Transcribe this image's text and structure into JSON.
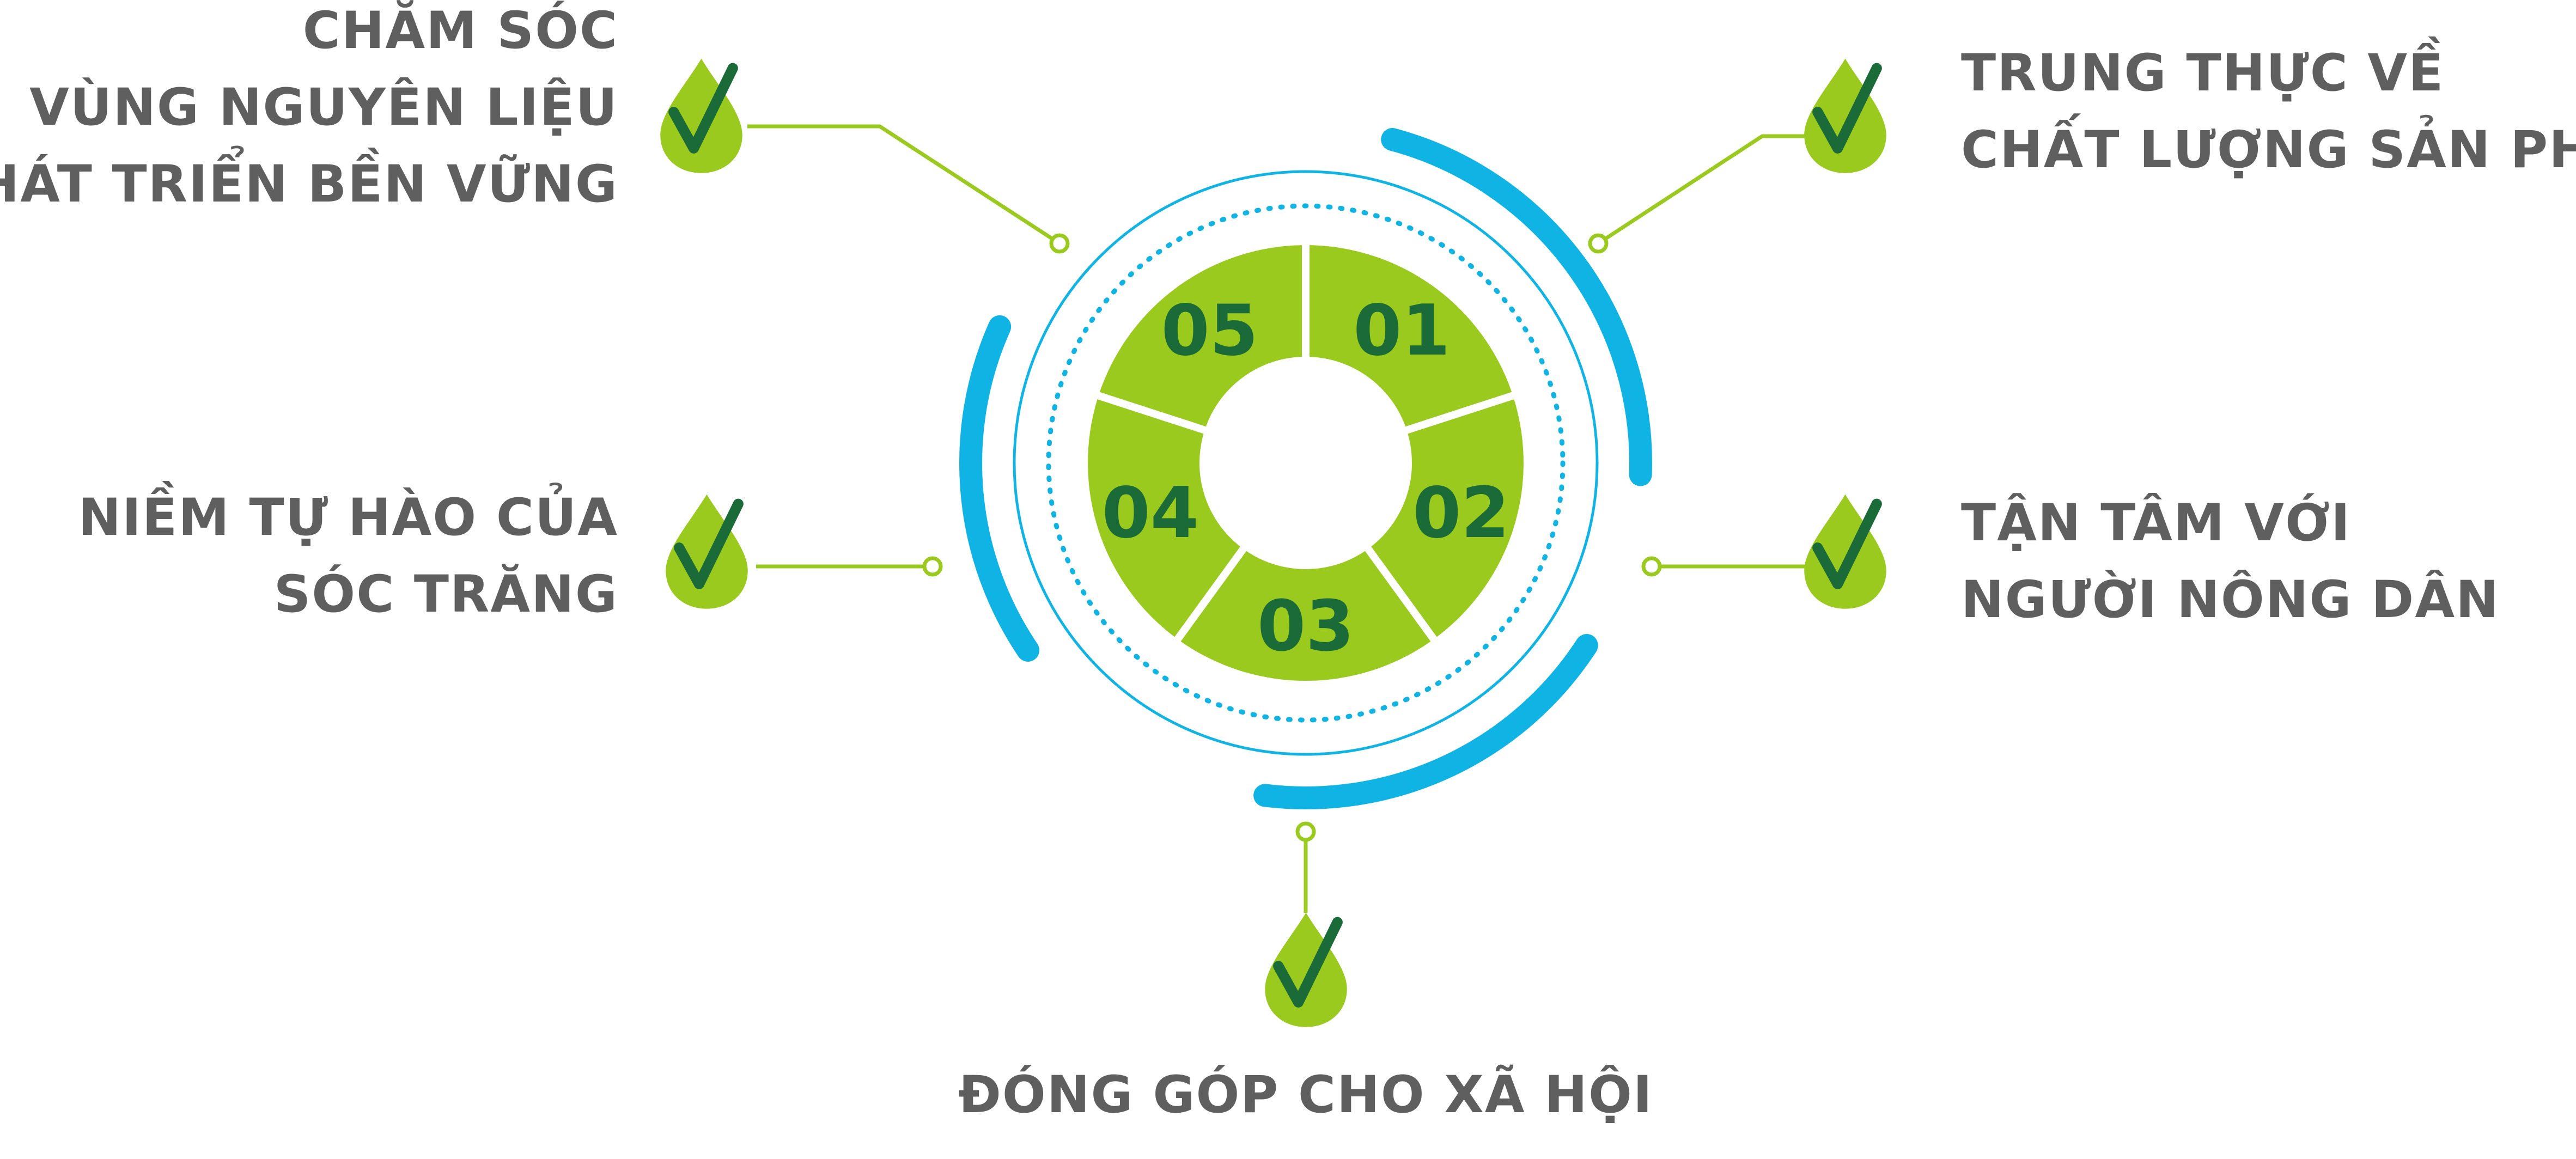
{
  "colors": {
    "green": "#9ACA1E",
    "dark_green": "#1A6B38",
    "blue": "#10B4E4",
    "text_gray": "#5F5F5F",
    "background": "#FFFFFF"
  },
  "segments": [
    "01",
    "02",
    "03",
    "04",
    "05"
  ],
  "items": {
    "top_left": {
      "lines": [
        "CHĂM SÓC",
        "VÙNG NGUYÊN LIỆU",
        "PHÁT TRIỂN BỀN VỮNG"
      ],
      "icon": "check-drop-icon"
    },
    "top_right": {
      "lines": [
        "TRUNG THỰC VỀ",
        "CHẤT LƯỢNG SẢN PHẨM"
      ],
      "icon": "check-drop-icon"
    },
    "mid_left": {
      "lines": [
        "NIỀM TỰ HÀO CỦA",
        "SÓC TRĂNG"
      ],
      "icon": "check-drop-icon"
    },
    "mid_right": {
      "lines": [
        "TẬN TÂM VỚI",
        "NGƯỜI NÔNG DÂN"
      ],
      "icon": "check-drop-icon"
    },
    "bottom": {
      "lines": [
        "ĐÓNG GÓP CHO XÃ HỘI"
      ],
      "icon": "check-drop-icon"
    }
  }
}
